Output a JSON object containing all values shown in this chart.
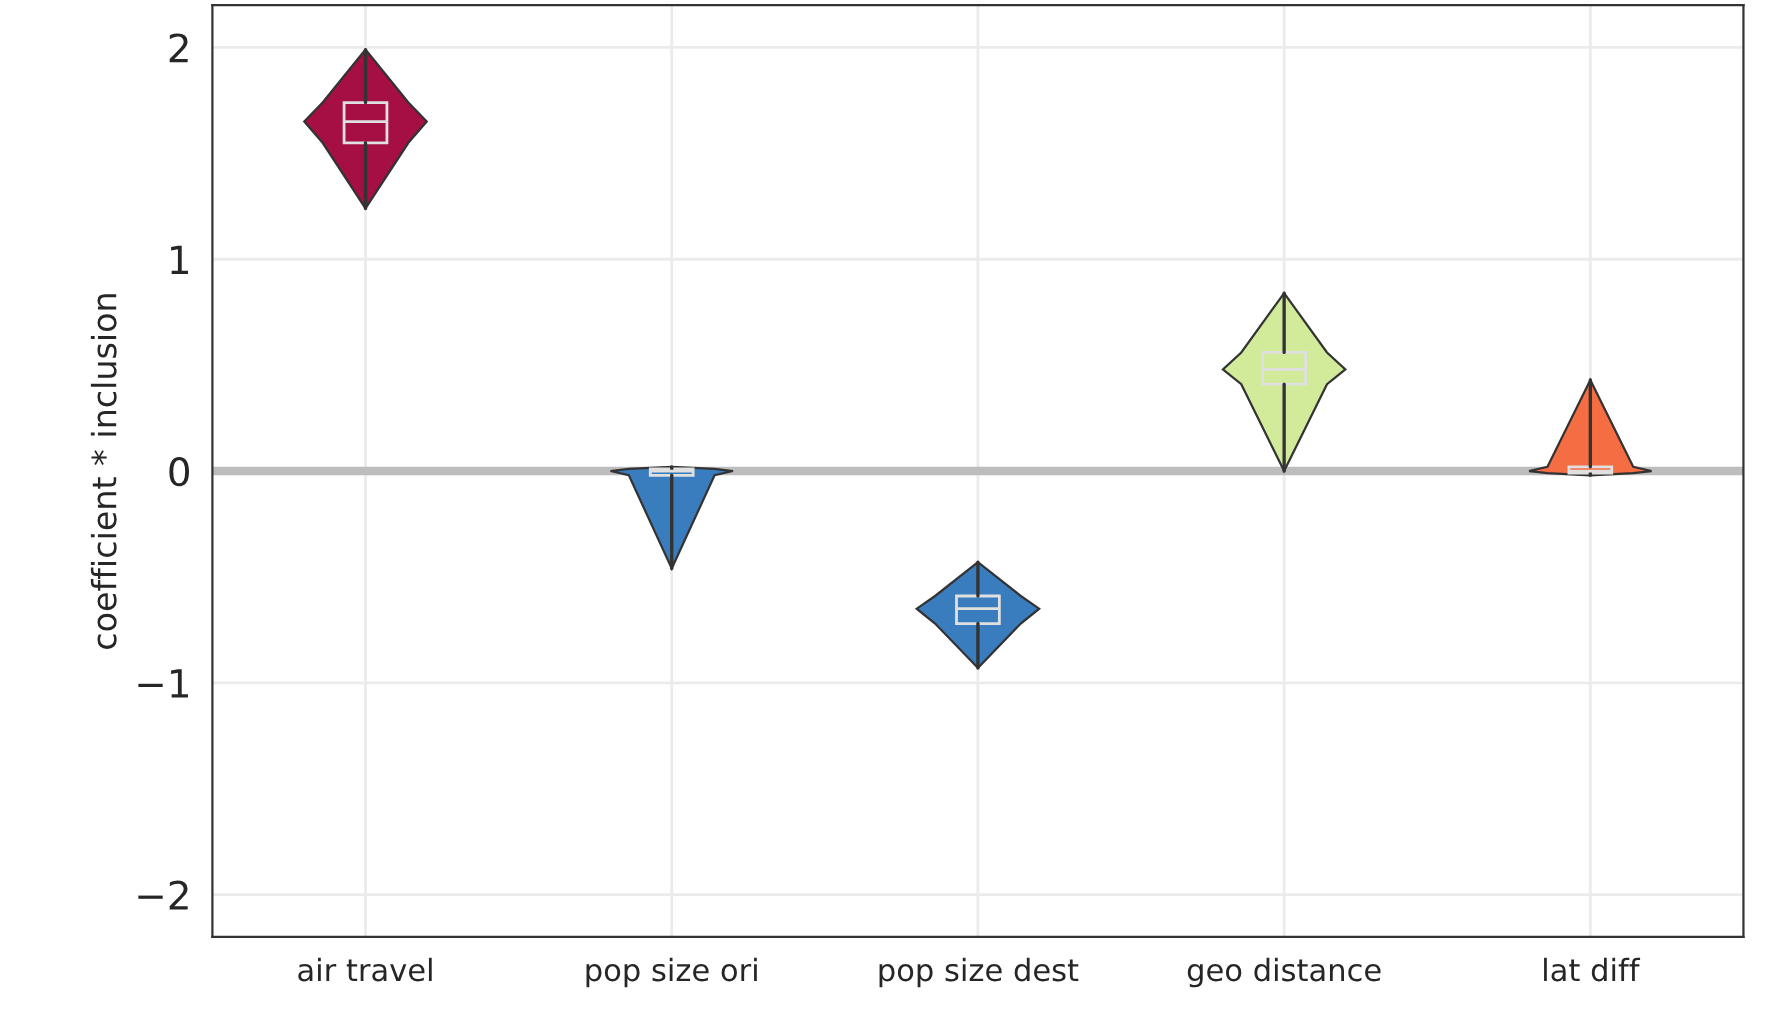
{
  "chart_data": {
    "type": "box",
    "ylabel": "coefficient * inclusion",
    "categories": [
      "air travel",
      "pop size ori",
      "pop size dest",
      "geo distance",
      "lat diff"
    ],
    "colors": [
      "#a50f44",
      "#3a7dbf",
      "#3a7dbf",
      "#d2eb9a",
      "#f46d43"
    ],
    "boxes": [
      {
        "low": 1.24,
        "q1": 1.55,
        "median": 1.65,
        "q3": 1.74,
        "high": 1.99
      },
      {
        "low": -0.46,
        "q1": -0.02,
        "median": 0,
        "q3": 0.01,
        "high": 0.02
      },
      {
        "low": -0.93,
        "q1": -0.72,
        "median": -0.65,
        "q3": -0.59,
        "high": -0.43
      },
      {
        "low": 0,
        "q1": 0.41,
        "median": 0.48,
        "q3": 0.56,
        "high": 0.84
      },
      {
        "low": -0.02,
        "q1": -0.01,
        "median": 0,
        "q3": 0.02,
        "high": 0.43
      }
    ],
    "ylim": [
      -2.2,
      2.2
    ],
    "yticks": [
      -2,
      -1,
      0,
      1,
      2
    ],
    "ref_lines": [
      {
        "axis": "y",
        "value": 0,
        "color": "#bdbdbd"
      }
    ],
    "grid": true
  }
}
